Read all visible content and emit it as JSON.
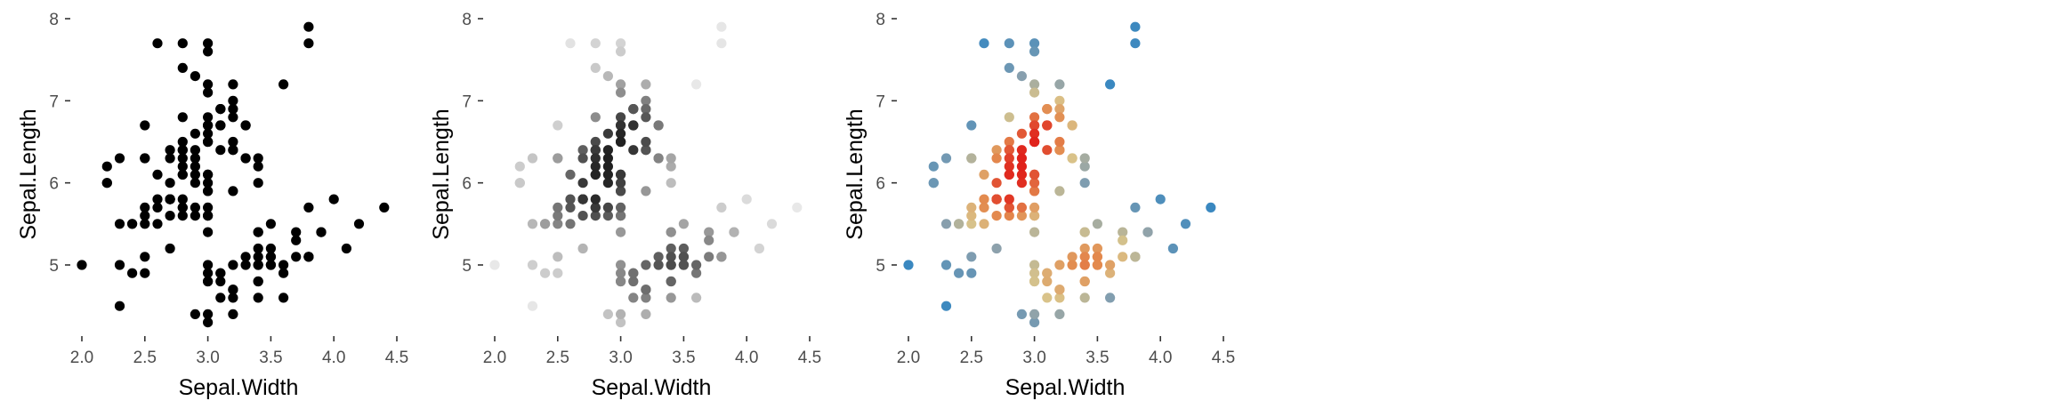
{
  "chart_data": [
    {
      "type": "scatter",
      "title": "",
      "xlabel": "Sepal.Width",
      "ylabel": "Sepal.Length",
      "xlim": [
        1.9,
        4.5
      ],
      "ylim": [
        4.2,
        8.0
      ],
      "x_ticks": [
        "2.0",
        "2.5",
        "3.0",
        "3.5",
        "4.0",
        "4.5"
      ],
      "y_ticks": [
        "5",
        "6",
        "7",
        "8"
      ],
      "grid": false,
      "legend": "none",
      "color_mode": "solid",
      "point_color": "#000000",
      "points": "iris"
    },
    {
      "type": "scatter",
      "title": "",
      "xlabel": "Sepal.Width",
      "ylabel": "Sepal.Length",
      "xlim": [
        1.9,
        4.5
      ],
      "ylim": [
        4.2,
        8.0
      ],
      "x_ticks": [
        "2.0",
        "2.5",
        "3.0",
        "3.5",
        "4.0",
        "4.5"
      ],
      "y_ticks": [
        "5",
        "6",
        "7",
        "8"
      ],
      "grid": false,
      "legend": "none",
      "color_mode": "density-grey",
      "points": "iris"
    },
    {
      "type": "scatter",
      "title": "",
      "xlabel": "Sepal.Width",
      "ylabel": "Sepal.Length",
      "xlim": [
        1.9,
        4.5
      ],
      "ylim": [
        4.2,
        8.0
      ],
      "x_ticks": [
        "2.0",
        "2.5",
        "3.0",
        "3.5",
        "4.0",
        "4.5"
      ],
      "y_ticks": [
        "5",
        "6",
        "7",
        "8"
      ],
      "grid": false,
      "legend": "none",
      "color_mode": "density-color",
      "palette": [
        "#3a88c0",
        "#8aa0ad",
        "#d9c38a",
        "#e38a4e",
        "#e0211b"
      ],
      "points": "iris"
    }
  ],
  "iris": {
    "x": [
      3.5,
      3.0,
      3.2,
      3.1,
      3.6,
      3.9,
      3.4,
      3.4,
      2.9,
      3.1,
      3.7,
      3.4,
      3.0,
      3.0,
      4.0,
      4.4,
      3.9,
      3.5,
      3.8,
      3.8,
      3.4,
      3.7,
      3.6,
      3.3,
      3.4,
      3.0,
      3.4,
      3.5,
      3.4,
      3.2,
      3.1,
      3.4,
      4.1,
      4.2,
      3.1,
      3.2,
      3.5,
      3.6,
      3.0,
      3.4,
      3.5,
      2.3,
      3.2,
      3.5,
      3.8,
      3.0,
      3.8,
      3.2,
      3.7,
      3.3,
      3.2,
      3.2,
      3.1,
      2.3,
      2.8,
      2.8,
      3.3,
      2.4,
      2.9,
      2.7,
      2.0,
      3.0,
      2.2,
      2.9,
      2.9,
      3.1,
      3.0,
      2.7,
      2.2,
      2.5,
      3.2,
      2.8,
      2.5,
      2.8,
      2.9,
      3.0,
      2.8,
      3.0,
      2.9,
      2.6,
      2.4,
      2.4,
      2.7,
      2.7,
      3.0,
      3.4,
      3.1,
      2.3,
      3.0,
      2.5,
      2.6,
      3.0,
      2.6,
      2.3,
      2.7,
      3.0,
      2.9,
      2.9,
      2.5,
      2.8,
      3.3,
      2.7,
      3.0,
      2.9,
      3.0,
      3.0,
      2.5,
      2.9,
      2.5,
      3.6,
      3.2,
      2.7,
      3.0,
      2.5,
      2.8,
      3.2,
      3.0,
      3.8,
      2.6,
      2.2,
      3.2,
      2.8,
      2.8,
      2.7,
      3.3,
      3.2,
      2.8,
      3.0,
      2.8,
      3.0,
      2.8,
      3.8,
      2.8,
      2.8,
      2.6,
      3.0,
      3.4,
      3.1,
      3.0,
      3.1,
      3.1,
      3.1,
      2.7,
      3.2,
      3.3,
      3.0,
      2.5,
      3.0,
      3.4,
      3.0
    ],
    "y": [
      5.1,
      4.9,
      4.7,
      4.6,
      5.0,
      5.4,
      4.6,
      5.0,
      4.4,
      4.9,
      5.4,
      4.8,
      4.8,
      4.3,
      5.8,
      5.7,
      5.4,
      5.1,
      5.7,
      5.1,
      5.4,
      5.1,
      4.6,
      5.1,
      4.8,
      5.0,
      5.0,
      5.2,
      5.2,
      4.7,
      4.8,
      5.4,
      5.2,
      5.5,
      4.9,
      5.0,
      5.5,
      4.9,
      4.4,
      5.1,
      5.0,
      4.5,
      4.4,
      5.0,
      5.1,
      4.8,
      5.1,
      4.6,
      5.3,
      5.0,
      7.0,
      6.4,
      6.9,
      5.5,
      6.5,
      5.7,
      6.3,
      4.9,
      6.6,
      5.2,
      5.0,
      5.9,
      6.0,
      6.1,
      5.6,
      6.7,
      5.6,
      5.8,
      6.2,
      5.6,
      5.9,
      6.1,
      6.3,
      6.1,
      6.4,
      6.6,
      6.8,
      6.7,
      6.0,
      5.7,
      5.5,
      5.5,
      5.8,
      6.0,
      5.4,
      6.0,
      6.7,
      6.3,
      5.6,
      5.5,
      5.5,
      6.1,
      5.8,
      5.0,
      5.6,
      5.7,
      5.7,
      6.2,
      5.1,
      5.7,
      6.3,
      5.8,
      7.1,
      6.3,
      6.5,
      7.6,
      4.9,
      7.3,
      6.7,
      7.2,
      6.5,
      6.4,
      6.8,
      5.7,
      5.8,
      6.4,
      6.5,
      7.7,
      7.7,
      6.0,
      6.9,
      5.6,
      7.7,
      6.3,
      6.7,
      7.2,
      6.2,
      6.1,
      6.4,
      7.2,
      7.4,
      7.9,
      6.4,
      6.3,
      6.1,
      7.7,
      6.3,
      6.4,
      6.0,
      6.9,
      6.7,
      6.9,
      5.8,
      6.8,
      6.7,
      6.7,
      6.3,
      6.5,
      6.2,
      5.9
    ]
  }
}
